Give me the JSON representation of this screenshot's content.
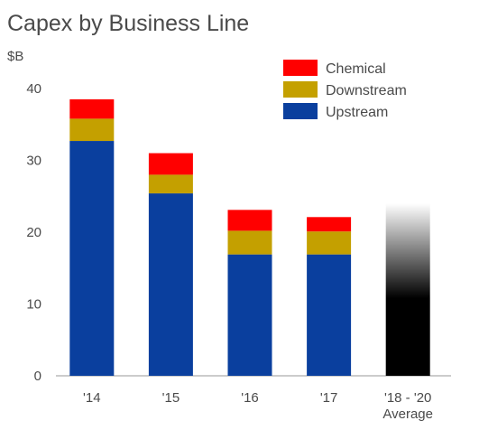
{
  "chart_data": {
    "type": "bar",
    "stacked": true,
    "title": "Capex by Business Line",
    "ylabel": "$B",
    "xlabel": "",
    "ylim": [
      0,
      40
    ],
    "yticks": [
      0,
      10,
      20,
      30,
      40
    ],
    "grid": false,
    "legend_position": "top-right",
    "categories": [
      "'14",
      "'15",
      "'16",
      "'17",
      "'18 - '20 Average"
    ],
    "category_lines": [
      [
        "'14"
      ],
      [
        "'15"
      ],
      [
        "'16"
      ],
      [
        "'17"
      ],
      [
        "'18 - '20",
        "Average"
      ]
    ],
    "series": [
      {
        "name": "Upstream",
        "color": "#0a3f9e",
        "values": [
          32.7,
          25.4,
          16.9,
          16.9,
          null
        ]
      },
      {
        "name": "Downstream",
        "color": "#c4a000",
        "values": [
          3.1,
          2.6,
          3.3,
          3.2,
          null
        ]
      },
      {
        "name": "Chemical",
        "color": "#ff0000",
        "values": [
          2.7,
          3.0,
          2.9,
          2.0,
          null
        ]
      }
    ],
    "total_only": {
      "category": "'18 - '20 Average",
      "value": 24,
      "fill": "black-to-white gradient"
    }
  }
}
